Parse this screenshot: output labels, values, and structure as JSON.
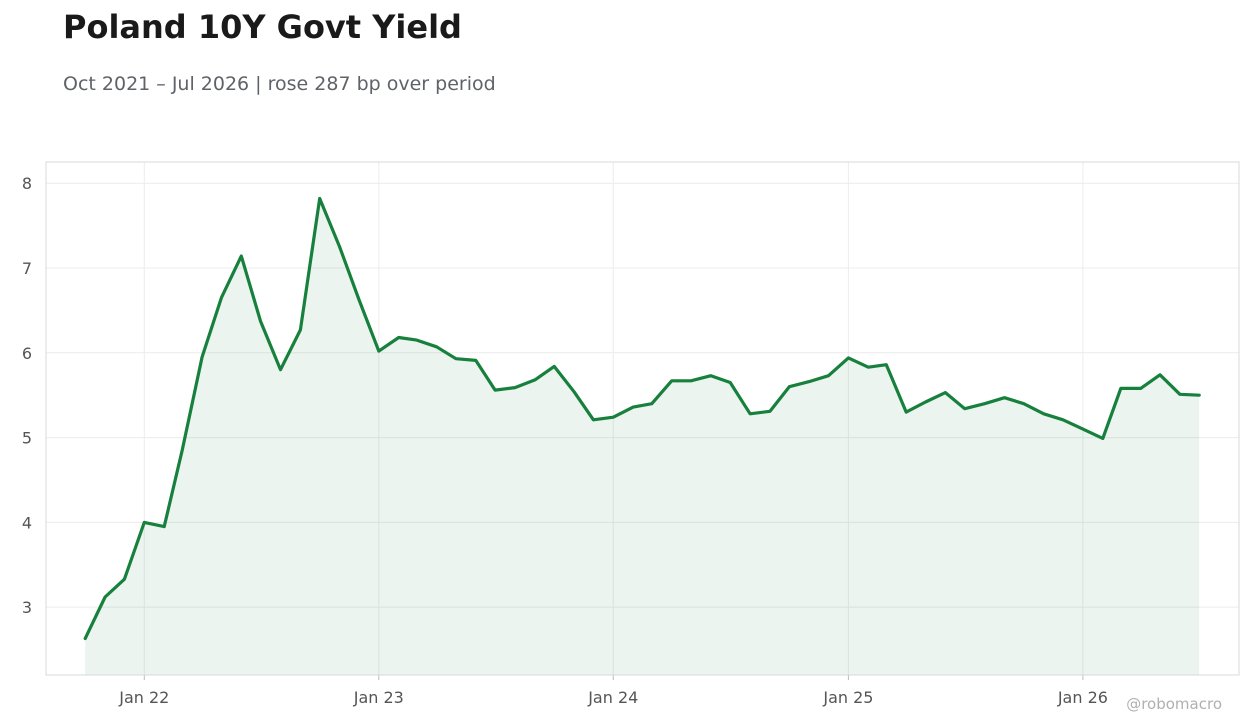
{
  "colors": {
    "line": "#17803d",
    "fill": "#17803d",
    "grid": "#ececec",
    "frame": "#d9d9d9",
    "tick_text": "#555555",
    "title": "#1a1a1a",
    "subtitle": "#5f6368",
    "watermark": "#b0b0b0"
  },
  "watermark": "@robomacro",
  "chart_data": {
    "type": "area",
    "title": "Poland 10Y Govt Yield",
    "subtitle": "Oct 2021 – Jul 2026 | rose 287 bp over period",
    "xlabel": "",
    "ylabel": "",
    "grid": true,
    "x_ticks": [
      "2022-01-01",
      "2023-01-01",
      "2024-01-01",
      "2025-01-01",
      "2026-01-01"
    ],
    "x_tick_labels": [
      "Jan 22",
      "Jan 23",
      "Jan 24",
      "Jan 25",
      "Jan 26"
    ],
    "y_ticks": [
      3,
      4,
      5,
      6,
      7,
      8
    ],
    "ylim": [
      2.2,
      8.25
    ],
    "xlim": [
      "2021-08-01",
      "2026-09-01"
    ],
    "series": [
      {
        "x": [
          "2021-10-01",
          "2021-11-01",
          "2021-12-01",
          "2022-01-01",
          "2022-02-01",
          "2022-03-01",
          "2022-04-01",
          "2022-05-01",
          "2022-06-01",
          "2022-07-01",
          "2022-08-01",
          "2022-09-01",
          "2022-10-01",
          "2022-11-01",
          "2022-12-01",
          "2023-01-01",
          "2023-02-01",
          "2023-03-01",
          "2023-04-01",
          "2023-05-01",
          "2023-06-01",
          "2023-07-01",
          "2023-08-01",
          "2023-09-01",
          "2023-10-01",
          "2023-11-01",
          "2023-12-01",
          "2024-01-01",
          "2024-02-01",
          "2024-03-01",
          "2024-04-01",
          "2024-05-01",
          "2024-06-01",
          "2024-07-01",
          "2024-08-01",
          "2024-09-01",
          "2024-10-01",
          "2024-11-01",
          "2024-12-01",
          "2025-01-01",
          "2025-02-01",
          "2025-03-01",
          "2025-04-01",
          "2025-05-01",
          "2025-06-01",
          "2025-07-01",
          "2025-08-01",
          "2025-09-01",
          "2025-10-01",
          "2025-11-01",
          "2025-12-01",
          "2026-01-01",
          "2026-02-01",
          "2026-03-01",
          "2026-04-01",
          "2026-05-01",
          "2026-06-01",
          "2026-07-01"
        ],
        "values": [
          2.63,
          3.12,
          3.33,
          4.0,
          3.95,
          4.85,
          5.95,
          6.65,
          7.14,
          6.37,
          5.8,
          6.27,
          7.82,
          7.25,
          6.63,
          6.02,
          6.18,
          6.15,
          6.07,
          5.93,
          5.91,
          5.56,
          5.59,
          5.68,
          5.84,
          5.54,
          5.21,
          5.24,
          5.36,
          5.4,
          5.67,
          5.67,
          5.73,
          5.65,
          5.28,
          5.31,
          5.6,
          5.66,
          5.73,
          5.94,
          5.83,
          5.86,
          5.3,
          5.42,
          5.53,
          5.34,
          5.4,
          5.47,
          5.4,
          5.28,
          5.21,
          5.1,
          4.99,
          5.58,
          5.58,
          5.74,
          5.51,
          5.5
        ]
      }
    ]
  }
}
